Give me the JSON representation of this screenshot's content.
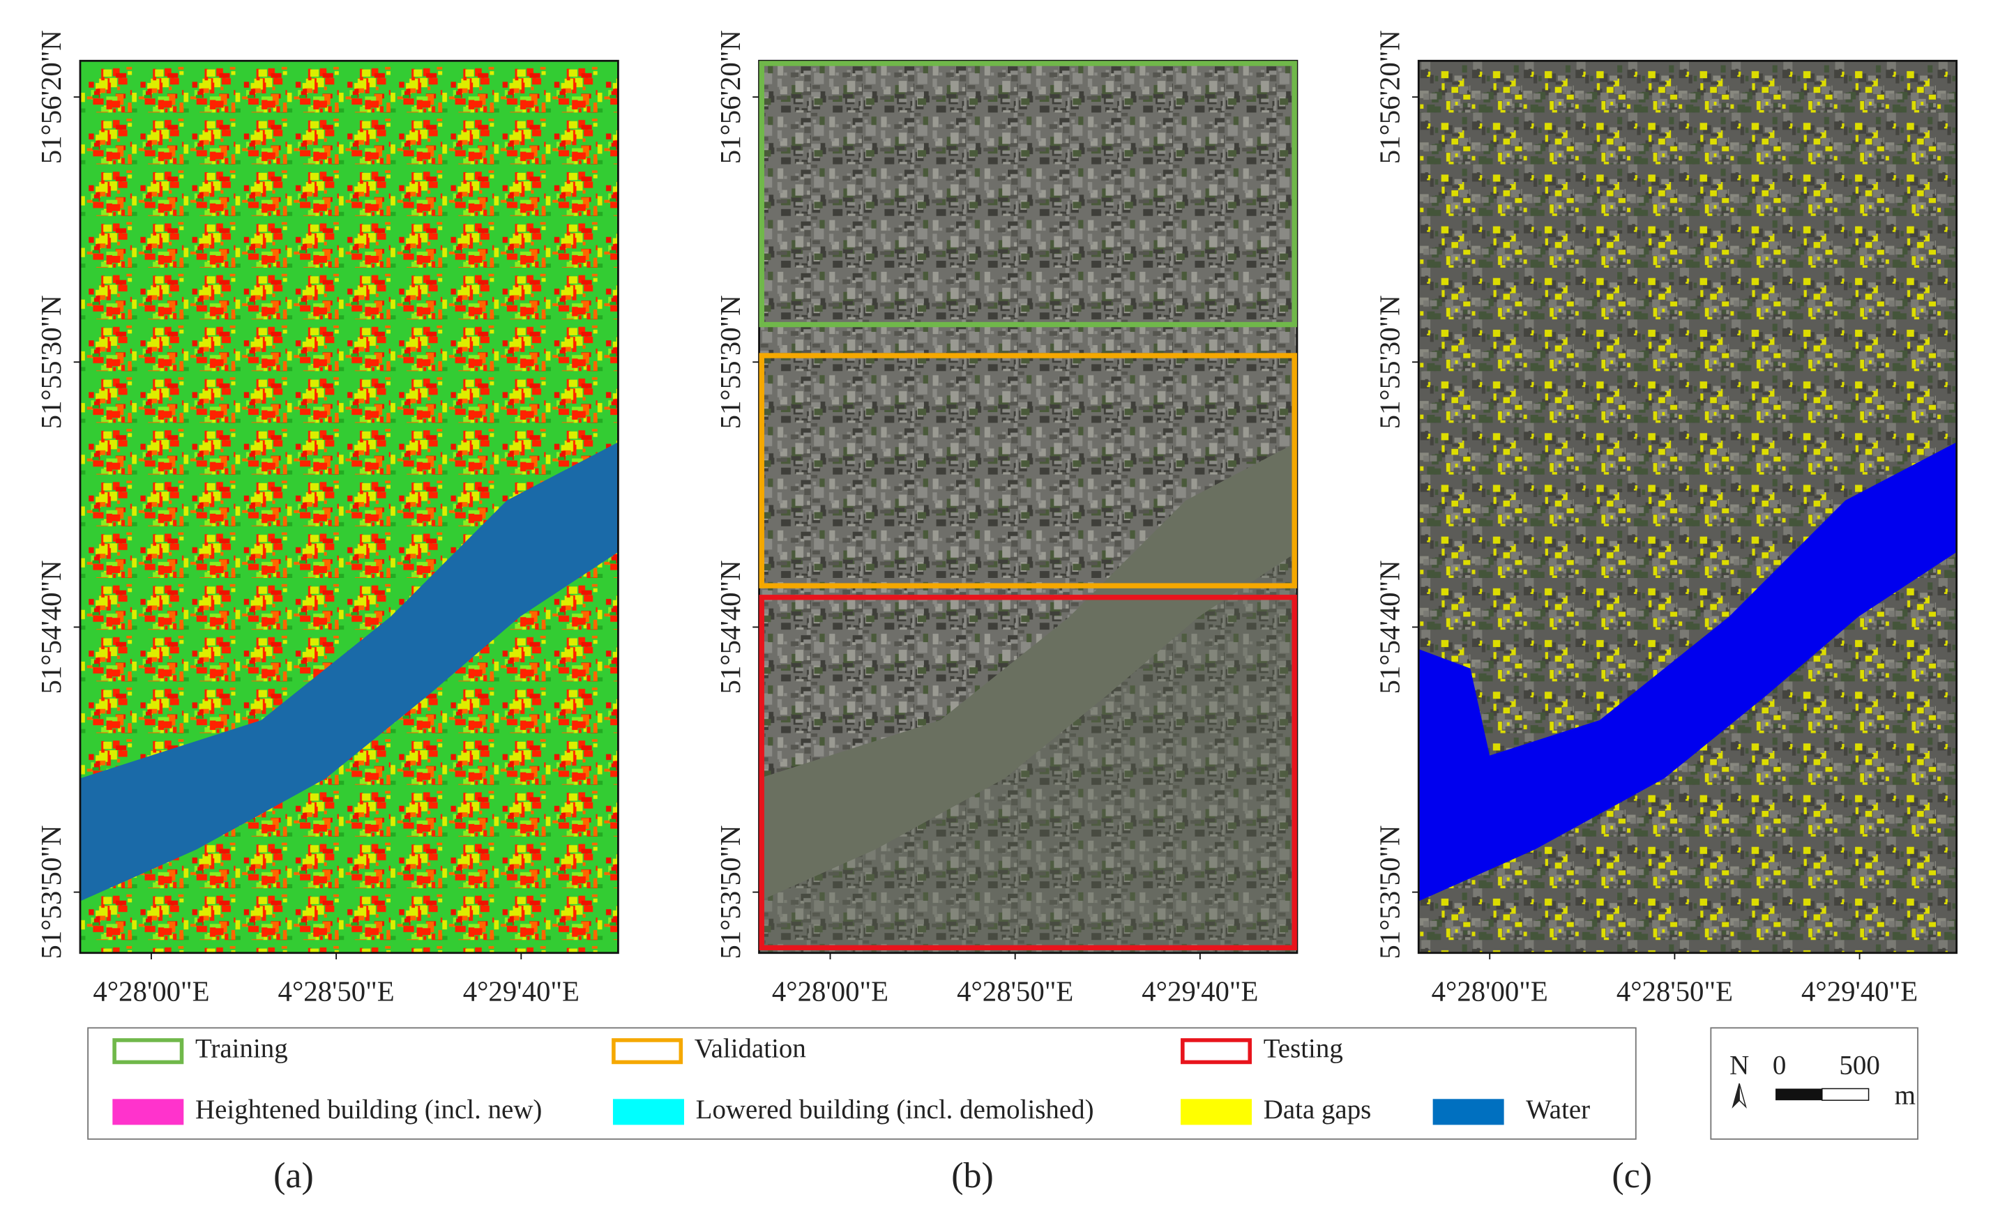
{
  "panels": [
    {
      "label": "(a)",
      "x_ticks": [
        "4°28'00\"E",
        "4°28'50\"E",
        "4°29'40\"E"
      ],
      "y_ticks": [
        "51°56'20\"N",
        "51°55'30\"N",
        "51°54'40\"N",
        "51°53'50\"N"
      ]
    },
    {
      "label": "(b)",
      "x_ticks": [
        "4°28'00\"E",
        "4°28'50\"E",
        "4°29'40\"E"
      ],
      "y_ticks": [
        "51°56'20\"N",
        "51°55'30\"N",
        "51°54'40\"N",
        "51°53'50\"N"
      ]
    },
    {
      "label": "(c)",
      "x_ticks": [
        "4°28'00\"E",
        "4°28'50\"E",
        "4°29'40\"E"
      ],
      "y_ticks": [
        "51°56'20\"N",
        "51°55'30\"N",
        "51°54'40\"N",
        "51°53'50\"N"
      ]
    }
  ],
  "legend": {
    "items": [
      {
        "label": "Training",
        "color": "#70b84a",
        "style": "outline"
      },
      {
        "label": "Validation",
        "color": "#f5a800",
        "style": "outline"
      },
      {
        "label": "Testing",
        "color": "#e8141c",
        "style": "outline"
      },
      {
        "label": "Heightened building (incl. new)",
        "color": "#ff33cc",
        "style": "fill"
      },
      {
        "label": "Lowered building (incl. demolished)",
        "color": "#00ffff",
        "style": "fill"
      },
      {
        "label": "Data gaps",
        "color": "#ffff00",
        "style": "fill"
      },
      {
        "label": "Water",
        "color": "#0070c0",
        "style": "fill"
      }
    ]
  },
  "scale_bar": {
    "north": "N",
    "zero": "0",
    "distance": "500",
    "unit": "m"
  }
}
